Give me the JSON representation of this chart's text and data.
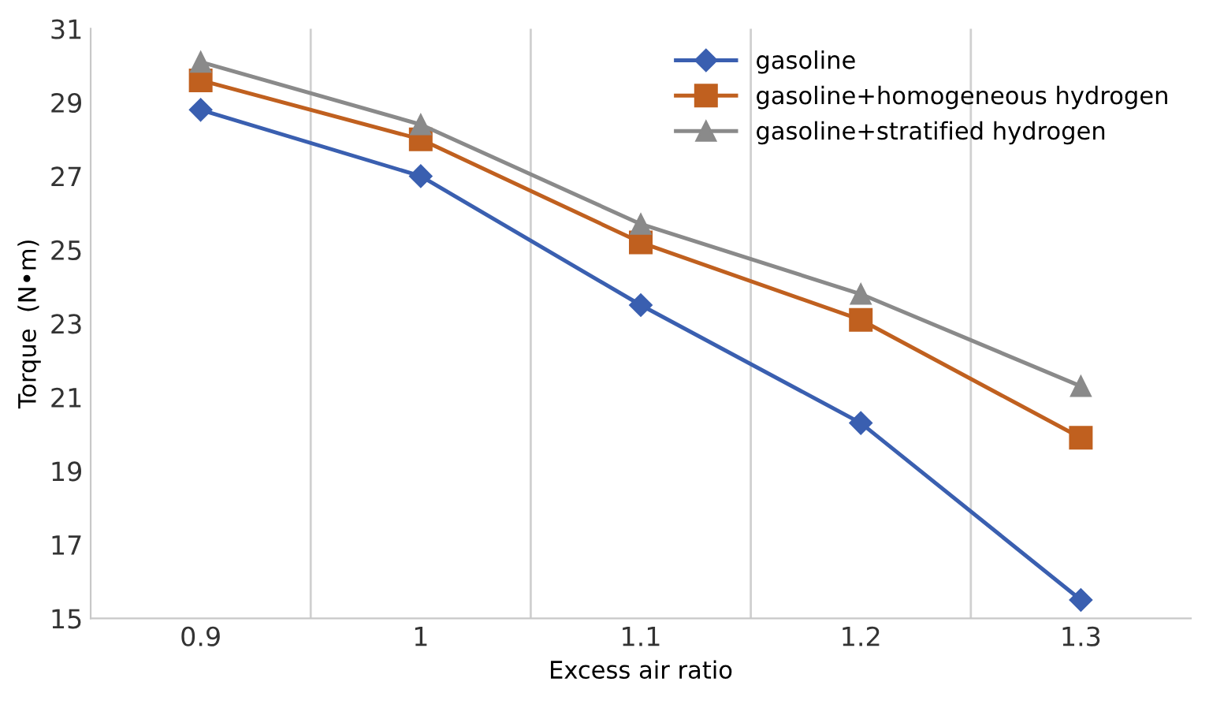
{
  "chart_data": {
    "type": "line",
    "xlabel": "Excess air ratio",
    "ylabel": "Torque  (N•m)",
    "categories": [
      "0.9",
      "1",
      "1.1",
      "1.2",
      "1.3"
    ],
    "series": [
      {
        "name": "gasoline",
        "color": "#3a5fb0",
        "marker": "diamond",
        "values": [
          28.8,
          27.0,
          23.5,
          20.3,
          15.5
        ]
      },
      {
        "name": "gasoline+homogeneous hydrogen",
        "color": "#c0601f",
        "marker": "square",
        "values": [
          29.6,
          28.0,
          25.2,
          23.1,
          19.9
        ]
      },
      {
        "name": "gasoline+stratified hydrogen",
        "color": "#8a8a8a",
        "marker": "triangle",
        "values": [
          30.1,
          28.4,
          25.7,
          23.8,
          21.3
        ]
      }
    ],
    "ylim": [
      15,
      31
    ],
    "yticks": [
      15,
      17,
      19,
      21,
      23,
      25,
      27,
      29,
      31
    ],
    "grid": "x",
    "legend": "top right",
    "line_style": "solid"
  }
}
